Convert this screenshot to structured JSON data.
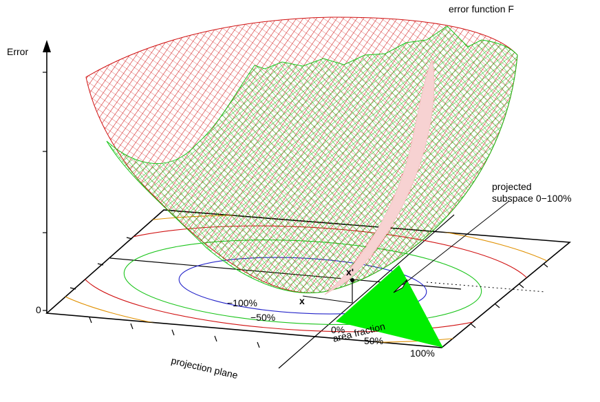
{
  "labels": {
    "error_axis": "Error",
    "zero": "0",
    "surface": "error function F",
    "projected_line1": "projected",
    "projected_line2": "subspace 0−100%",
    "point_x": "x",
    "point_x_prime": "x'",
    "area_fraction": "area fraction",
    "projection_plane": "projection plane"
  },
  "ticks": {
    "neg100": "−100%",
    "neg50": "−50%",
    "p0": "0%",
    "p50": "50%",
    "p100": "100%"
  },
  "colors": {
    "surface_outer": "#d01010",
    "surface_inner": "#19c419",
    "slice": "#f7d2d2",
    "triangle": "#00ee00",
    "contour_blue": "#2020c8",
    "contour_green": "#19c419",
    "contour_red": "#d01010",
    "contour_orange": "#e09000"
  }
}
